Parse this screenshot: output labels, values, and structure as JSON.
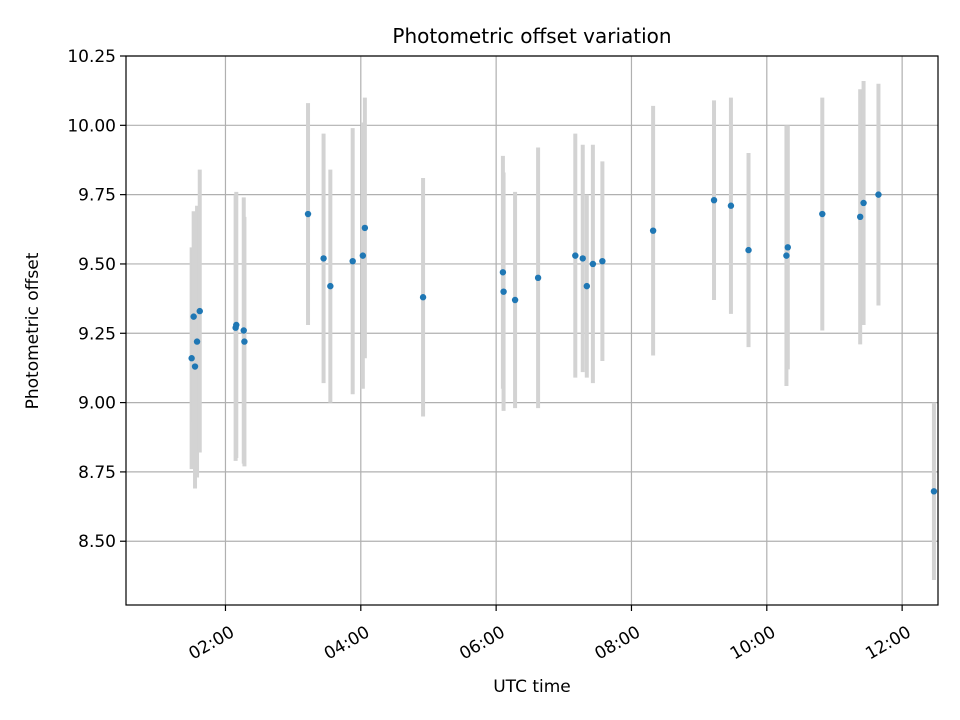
{
  "chart_data": {
    "type": "scatter",
    "title": "Photometric offset variation",
    "xlabel": "UTC time",
    "ylabel": "Photometric offset",
    "xlim_hours": [
      0.53,
      12.53
    ],
    "ylim": [
      8.27,
      10.25
    ],
    "grid": true,
    "x_ticks": [
      {
        "hour": 2,
        "label": "02:00"
      },
      {
        "hour": 4,
        "label": "04:00"
      },
      {
        "hour": 6,
        "label": "06:00"
      },
      {
        "hour": 8,
        "label": "08:00"
      },
      {
        "hour": 10,
        "label": "10:00"
      },
      {
        "hour": 12,
        "label": "12:00"
      }
    ],
    "y_ticks": [
      {
        "value": 8.5,
        "label": "8.50"
      },
      {
        "value": 8.75,
        "label": "8.75"
      },
      {
        "value": 9.0,
        "label": "9.00"
      },
      {
        "value": 9.25,
        "label": "9.25"
      },
      {
        "value": 9.5,
        "label": "9.50"
      },
      {
        "value": 9.75,
        "label": "9.75"
      },
      {
        "value": 10.0,
        "label": "10.00"
      },
      {
        "value": 10.25,
        "label": "10.25"
      }
    ],
    "marker_color": "#1f77b4",
    "errorbar_color": "#d3d3d3",
    "points": [
      {
        "t": 1.5,
        "y": 9.16,
        "err": 0.4
      },
      {
        "t": 1.53,
        "y": 9.31,
        "err": 0.38
      },
      {
        "t": 1.55,
        "y": 9.13,
        "err": 0.44
      },
      {
        "t": 1.58,
        "y": 9.22,
        "err": 0.49
      },
      {
        "t": 1.62,
        "y": 9.33,
        "err": 0.51
      },
      {
        "t": 2.15,
        "y": 9.27,
        "err": 0.48
      },
      {
        "t": 2.16,
        "y": 9.28,
        "err": 0.48
      },
      {
        "t": 2.27,
        "y": 9.26,
        "err": 0.48
      },
      {
        "t": 2.28,
        "y": 9.22,
        "err": 0.45
      },
      {
        "t": 3.22,
        "y": 9.68,
        "err": 0.4
      },
      {
        "t": 3.45,
        "y": 9.52,
        "err": 0.45
      },
      {
        "t": 3.55,
        "y": 9.42,
        "err": 0.42
      },
      {
        "t": 3.88,
        "y": 9.51,
        "err": 0.48
      },
      {
        "t": 4.03,
        "y": 9.53,
        "err": 0.48
      },
      {
        "t": 4.06,
        "y": 9.63,
        "err": 0.47
      },
      {
        "t": 4.92,
        "y": 9.38,
        "err": 0.43
      },
      {
        "t": 6.1,
        "y": 9.47,
        "err": 0.42
      },
      {
        "t": 6.11,
        "y": 9.4,
        "err": 0.43
      },
      {
        "t": 6.28,
        "y": 9.37,
        "err": 0.39
      },
      {
        "t": 6.62,
        "y": 9.45,
        "err": 0.47
      },
      {
        "t": 7.17,
        "y": 9.53,
        "err": 0.44
      },
      {
        "t": 7.28,
        "y": 9.52,
        "err": 0.41
      },
      {
        "t": 7.34,
        "y": 9.42,
        "err": 0.33
      },
      {
        "t": 7.43,
        "y": 9.5,
        "err": 0.43
      },
      {
        "t": 7.57,
        "y": 9.51,
        "err": 0.36
      },
      {
        "t": 8.32,
        "y": 9.62,
        "err": 0.45
      },
      {
        "t": 9.22,
        "y": 9.73,
        "err": 0.36
      },
      {
        "t": 9.47,
        "y": 9.71,
        "err": 0.39
      },
      {
        "t": 9.73,
        "y": 9.55,
        "err": 0.35
      },
      {
        "t": 10.29,
        "y": 9.53,
        "err": 0.47
      },
      {
        "t": 10.31,
        "y": 9.56,
        "err": 0.44
      },
      {
        "t": 10.82,
        "y": 9.68,
        "err": 0.42
      },
      {
        "t": 11.38,
        "y": 9.67,
        "err": 0.46
      },
      {
        "t": 11.43,
        "y": 9.72,
        "err": 0.44
      },
      {
        "t": 11.65,
        "y": 9.75,
        "err": 0.4
      },
      {
        "t": 12.47,
        "y": 8.68,
        "err": 0.32
      }
    ]
  }
}
